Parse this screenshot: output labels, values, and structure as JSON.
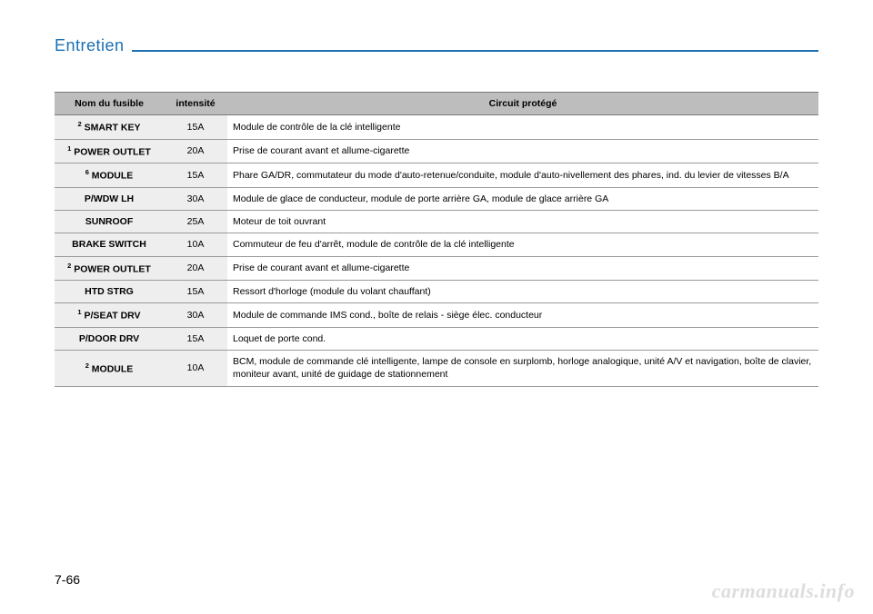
{
  "section_title": "Entretien",
  "page_number": "7-66",
  "watermark": "carmanuals.info",
  "table": {
    "headers": {
      "name": "Nom du fusible",
      "amps": "intensité",
      "desc": "Circuit protégé"
    },
    "rows": [
      {
        "sup": "2",
        "name": "SMART KEY",
        "amps": "15A",
        "desc": "Module de contrôle de la clé intelligente"
      },
      {
        "sup": "1",
        "name": "POWER OUTLET",
        "amps": "20A",
        "desc": "Prise de courant avant et allume-cigarette"
      },
      {
        "sup": "6",
        "name": "MODULE",
        "amps": "15A",
        "desc": "Phare GA/DR, commutateur du mode d'auto-retenue/conduite, module d'auto-nivellement des phares, ind. du levier de vitesses B/A"
      },
      {
        "sup": "",
        "name": "P/WDW LH",
        "amps": "30A",
        "desc": "Module de glace de conducteur, module de porte arrière GA, module de glace arrière GA"
      },
      {
        "sup": "",
        "name": "SUNROOF",
        "amps": "25A",
        "desc": "Moteur de toit ouvrant"
      },
      {
        "sup": "",
        "name": "BRAKE SWITCH",
        "amps": "10A",
        "desc": "Commuteur de feu d'arrêt, module de contrôle de la clé intelligente"
      },
      {
        "sup": "2",
        "name": "POWER OUTLET",
        "amps": "20A",
        "desc": "Prise de courant avant et allume-cigarette"
      },
      {
        "sup": "",
        "name": "HTD STRG",
        "amps": "15A",
        "desc": "Ressort d'horloge (module du volant chauffant)"
      },
      {
        "sup": "1",
        "name": "P/SEAT DRV",
        "amps": "30A",
        "desc": "Module de commande IMS cond., boîte de relais - siège élec. conducteur"
      },
      {
        "sup": "",
        "name": "P/DOOR DRV",
        "amps": "15A",
        "desc": "Loquet de porte cond."
      },
      {
        "sup": "2",
        "name": "MODULE",
        "amps": "10A",
        "desc": "BCM, module de commande clé intelligente, lampe de console en surplomb, horloge analogique, unité A/V et navigation, boîte de clavier, moniteur avant, unité de guidage de stationnement"
      }
    ]
  }
}
